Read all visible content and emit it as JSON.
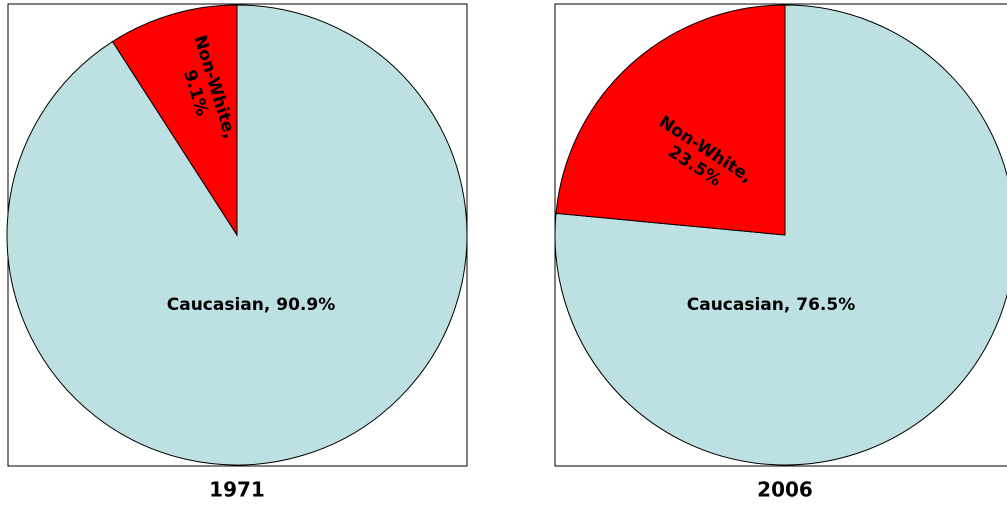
{
  "chart_data": [
    {
      "type": "pie",
      "title": "1971",
      "categories": [
        "Caucasian",
        "Non-White"
      ],
      "values": [
        90.9,
        9.1
      ],
      "value_labels": [
        "Caucasian, 90.9%",
        "Non-White, 9.1%"
      ],
      "colors": [
        "#bde0e3",
        "#ff0000"
      ]
    },
    {
      "type": "pie",
      "title": "2006",
      "categories": [
        "Caucasian",
        "Non-White"
      ],
      "values": [
        76.5,
        23.5
      ],
      "value_labels": [
        "Caucasian, 76.5%",
        "Non-White, 23.5%"
      ],
      "colors": [
        "#bde0e3",
        "#ff0000"
      ]
    }
  ]
}
